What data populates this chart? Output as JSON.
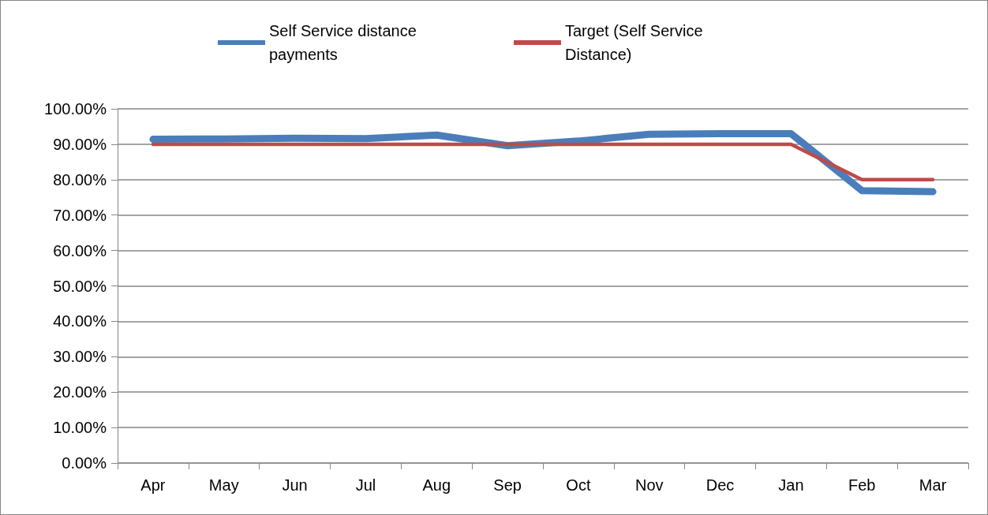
{
  "chart_data": {
    "type": "line",
    "categories": [
      "Apr",
      "May",
      "Jun",
      "Jul",
      "Aug",
      "Sep",
      "Oct",
      "Nov",
      "Dec",
      "Jan",
      "Feb",
      "Mar"
    ],
    "series": [
      {
        "name": "Self Service distance payments",
        "color": "#4a7ebb",
        "values": [
          91.4,
          91.5,
          91.7,
          91.6,
          92.6,
          89.6,
          90.9,
          92.8,
          93.0,
          93.0,
          76.9,
          76.6
        ]
      },
      {
        "name": "Target (Self Service Distance)",
        "color": "#be4b48",
        "values": [
          90,
          90,
          90,
          90,
          90,
          90,
          90,
          90,
          90,
          90,
          80,
          80
        ]
      }
    ],
    "ylim": [
      0,
      100
    ],
    "yticks": [
      {
        "value": 0,
        "label": "0.00%"
      },
      {
        "value": 10,
        "label": "10.00%"
      },
      {
        "value": 20,
        "label": "20.00%"
      },
      {
        "value": 30,
        "label": "30.00%"
      },
      {
        "value": 40,
        "label": "40.00%"
      },
      {
        "value": 50,
        "label": "50.00%"
      },
      {
        "value": 60,
        "label": "60.00%"
      },
      {
        "value": 70,
        "label": "70.00%"
      },
      {
        "value": 80,
        "label": "80.00%"
      },
      {
        "value": 90,
        "label": "90.00%"
      },
      {
        "value": 100,
        "label": "100.00%"
      }
    ],
    "grid": "y",
    "legend": "top",
    "marker": "none",
    "line_style": "solid"
  }
}
